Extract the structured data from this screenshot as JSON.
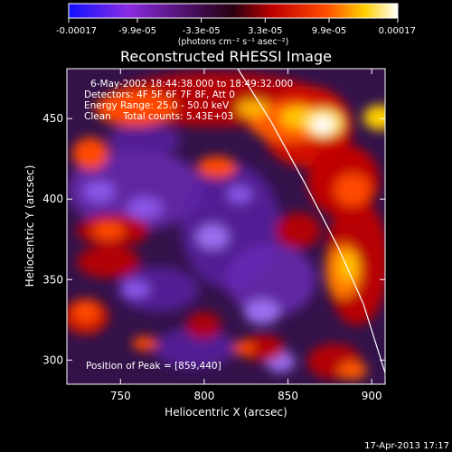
{
  "colorbar": {
    "tick_labels": [
      "-0.00017",
      "-9.9e-05",
      "-3.3e-05",
      "3.3e-05",
      "9.9e-05",
      "0.00017"
    ],
    "tick_values": [
      -0.00017,
      -9.9e-05,
      -3.3e-05,
      3.3e-05,
      9.9e-05,
      0.00017
    ],
    "range": [
      -0.00017,
      0.00017
    ],
    "unit_label": "(photons cm⁻² s⁻¹ asec⁻²)",
    "colors": [
      "#1010ff",
      "#8a2be2",
      "#5a0a5a",
      "#c00000",
      "#ff4a00",
      "#ffd000",
      "#ffffff"
    ]
  },
  "chart_data": {
    "type": "heatmap",
    "title": "Reconstructed RHESSI Image",
    "xlabel": "Heliocentric X (arcsec)",
    "ylabel": "Heliocentric Y (arcsec)",
    "xlim": [
      718,
      908
    ],
    "ylim": [
      285,
      481
    ],
    "x_ticks": [
      750,
      800,
      850,
      900
    ],
    "y_ticks": [
      300,
      350,
      400,
      450
    ],
    "x_tick_labels": [
      "750",
      "800",
      "850",
      "900"
    ],
    "y_tick_labels": [
      "300",
      "350",
      "400",
      "450"
    ],
    "annotations": [
      "6-May-2002 18:44:38.000 to 18:49:32.000",
      "Detectors: 4F 5F 6F 7F 8F, Att 0",
      "Energy Range: 25.0 - 50.0 keV",
      "Clean    Total counts: 5.43E+03",
      "Position of Peak = [859,440]"
    ],
    "peak": {
      "x": 859,
      "y": 440
    },
    "limb": [
      [
        820,
        481
      ],
      [
        840,
        448
      ],
      [
        860,
        410
      ],
      [
        880,
        370
      ],
      [
        895,
        335
      ],
      [
        908,
        292
      ]
    ]
  },
  "footer": {
    "timestamp": "17-Apr-2013 17:17"
  }
}
